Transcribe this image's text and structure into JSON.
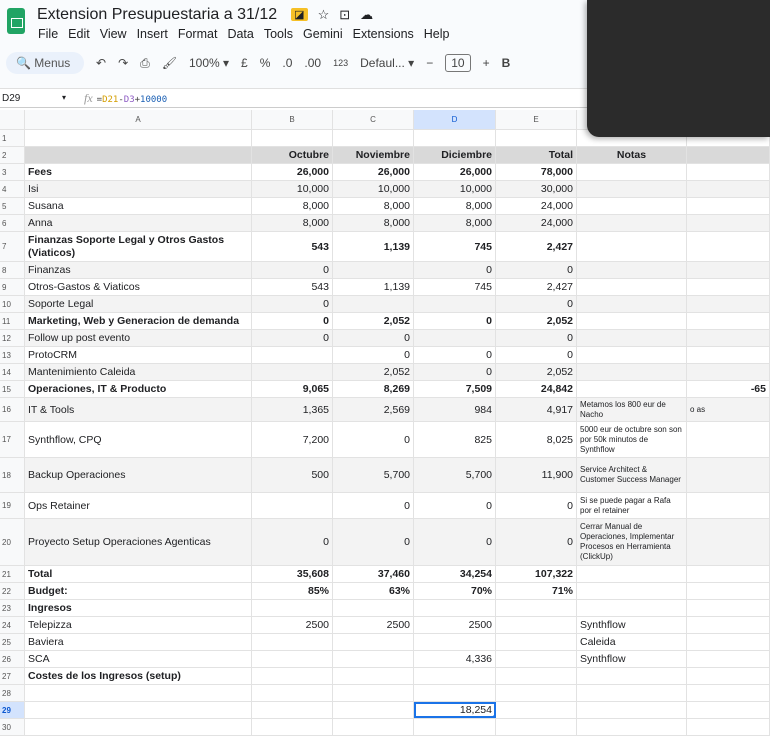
{
  "app": {
    "title": "Extension Presupuestaria a 31/12",
    "menu": [
      "File",
      "Edit",
      "View",
      "Insert",
      "Format",
      "Data",
      "Tools",
      "Gemini",
      "Extensions",
      "Help"
    ]
  },
  "toolbar": {
    "search": "Menus",
    "zoom": "100%",
    "currency": "£",
    "percent": "%",
    "dec_less": ".0",
    "dec_more": ".00",
    "format_123": "123",
    "font": "Defaul...",
    "font_size": "10",
    "bold": "B"
  },
  "formula_bar": {
    "cell": "D29",
    "fx": "fx",
    "formula_parts": [
      "=",
      "D21",
      "-",
      "D3",
      "+",
      "10000"
    ]
  },
  "columns": [
    "A",
    "B",
    "C",
    "D",
    "E",
    "F",
    "G"
  ],
  "selected_column": "D",
  "rows": [
    {
      "n": "1",
      "cells": [
        "",
        "",
        "",
        "",
        "",
        "",
        ""
      ]
    },
    {
      "n": "2",
      "style": "header",
      "cells": [
        "",
        "Octubre",
        "Noviembre",
        "Diciembre",
        "Total",
        "Notas",
        ""
      ]
    },
    {
      "n": "3",
      "bold": true,
      "cells": [
        "Fees",
        "26,000",
        "26,000",
        "26,000",
        "78,000",
        "",
        ""
      ]
    },
    {
      "n": "4",
      "cells": [
        "Isi",
        "10,000",
        "10,000",
        "10,000",
        "30,000",
        "",
        ""
      ]
    },
    {
      "n": "5",
      "cells": [
        "Susana",
        "8,000",
        "8,000",
        "8,000",
        "24,000",
        "",
        ""
      ]
    },
    {
      "n": "6",
      "cells": [
        "Anna",
        "8,000",
        "8,000",
        "8,000",
        "24,000",
        "",
        ""
      ]
    },
    {
      "n": "7",
      "bold": true,
      "tall": 30,
      "cells": [
        "Finanzas  Soporte Legal y Otros Gastos (Viaticos)",
        "543",
        "1,139",
        "745",
        "2,427",
        "",
        ""
      ]
    },
    {
      "n": "8",
      "cells": [
        "Finanzas",
        "0",
        "",
        "0",
        "0",
        "",
        ""
      ]
    },
    {
      "n": "9",
      "cells": [
        "Otros-Gastos & Viaticos",
        "543",
        "1,139",
        "745",
        "2,427",
        "",
        ""
      ]
    },
    {
      "n": "10",
      "cells": [
        "Soporte Legal",
        "0",
        "",
        "",
        "0",
        "",
        ""
      ]
    },
    {
      "n": "11",
      "bold": true,
      "cells": [
        "Marketing, Web y Generacion de demanda",
        "0",
        "2,052",
        "0",
        "2,052",
        "",
        ""
      ]
    },
    {
      "n": "12",
      "cells": [
        "Follow up post evento",
        "0",
        "0",
        "",
        "0",
        "",
        ""
      ]
    },
    {
      "n": "13",
      "cells": [
        "ProtoCRM",
        "",
        "0",
        "0",
        "0",
        "",
        ""
      ]
    },
    {
      "n": "14",
      "cells": [
        "Mantenimiento Caleida",
        "",
        "2,052",
        "0",
        "2,052",
        "",
        ""
      ]
    },
    {
      "n": "15",
      "bold": true,
      "cells": [
        "Operaciones, IT & Producto",
        "9,065",
        "8,269",
        "7,509",
        "24,842",
        "",
        "-65"
      ]
    },
    {
      "n": "16",
      "tall": 24,
      "cells": [
        "IT & Tools",
        "1,365",
        "2,569",
        "984",
        "4,917",
        "Metamos los 800 eur de Nacho",
        "o as"
      ]
    },
    {
      "n": "17",
      "tall": 36,
      "cells": [
        "Synthflow, CPQ",
        "7,200",
        "0",
        "825",
        "8,025",
        "5000 eur de octubre son son por 50k minutos de Synthflow",
        ""
      ]
    },
    {
      "n": "18",
      "tall": 35,
      "cells": [
        "Backup Operaciones",
        "500",
        "5,700",
        "5,700",
        "11,900",
        "Service Architect & Customer Success Manager",
        ""
      ]
    },
    {
      "n": "19",
      "tall": 26,
      "cells": [
        "Ops Retainer",
        "",
        "0",
        "0",
        "0",
        "Si se puede pagar a Rafa por el retainer",
        ""
      ]
    },
    {
      "n": "20",
      "tall": 47,
      "cells": [
        "Proyecto Setup Operaciones Agenticas",
        "0",
        "0",
        "0",
        "0",
        "Cerrar Manual de Operaciones, Implementar Procesos en Herramienta (ClickUp)",
        ""
      ]
    },
    {
      "n": "21",
      "bold": true,
      "cells": [
        "Total",
        "35,608",
        "37,460",
        "34,254",
        "107,322",
        "",
        ""
      ]
    },
    {
      "n": "22",
      "bold": true,
      "cells": [
        "Budget:",
        "85%",
        "63%",
        "70%",
        "71%",
        "",
        ""
      ]
    },
    {
      "n": "23",
      "bold": true,
      "cells": [
        "Ingresos",
        "",
        "",
        "",
        "",
        "",
        ""
      ]
    },
    {
      "n": "24",
      "cells": [
        "Telepizza",
        "2500",
        "2500",
        "2500",
        "",
        "Synthflow",
        ""
      ]
    },
    {
      "n": "25",
      "cells": [
        "Baviera",
        "",
        "",
        "",
        "",
        "Caleida",
        ""
      ]
    },
    {
      "n": "26",
      "cells": [
        "SCA",
        "",
        "",
        "4,336",
        "",
        "Synthflow",
        ""
      ]
    },
    {
      "n": "27",
      "bold": true,
      "cells": [
        "Costes de los Ingresos (setup)",
        "",
        "",
        "",
        "",
        "",
        ""
      ]
    },
    {
      "n": "28",
      "cells": [
        "",
        "",
        "",
        "",
        "",
        "",
        ""
      ]
    },
    {
      "n": "29",
      "cells": [
        "",
        "",
        "",
        "18,254",
        "",
        "",
        ""
      ]
    },
    {
      "n": "30",
      "cells": [
        "",
        "",
        "",
        "",
        "",
        "",
        ""
      ]
    }
  ]
}
